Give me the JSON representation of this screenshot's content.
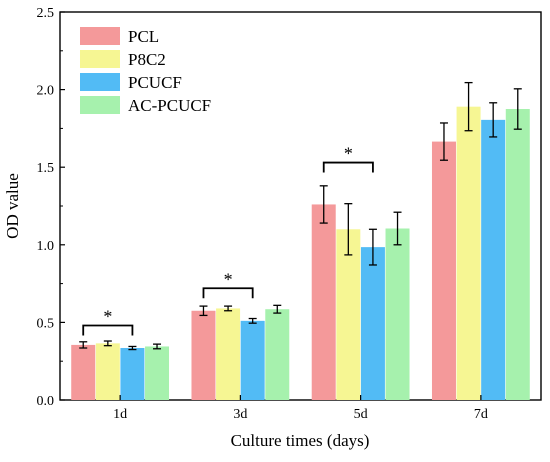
{
  "chart_data": {
    "type": "bar",
    "title": "",
    "xlabel": "Culture times (days)",
    "ylabel": "OD value",
    "ylim": [
      0,
      2.5
    ],
    "yticks": [
      "0.0",
      "0.5",
      "1.0",
      "1.5",
      "2.0",
      "2.5"
    ],
    "categories": [
      "1d",
      "3d",
      "5d",
      "7d"
    ],
    "series": [
      {
        "name": "PCL",
        "color": "#f4999a",
        "values": [
          0.355,
          0.575,
          1.26,
          1.665
        ],
        "errors": [
          0.02,
          0.03,
          0.12,
          0.12
        ]
      },
      {
        "name": "P8C2",
        "color": "#f6f693",
        "values": [
          0.365,
          0.59,
          1.1,
          1.89
        ],
        "errors": [
          0.015,
          0.015,
          0.165,
          0.155
        ]
      },
      {
        "name": "PCUCF",
        "color": "#52bbf5",
        "values": [
          0.335,
          0.51,
          0.985,
          1.805
        ],
        "errors": [
          0.01,
          0.015,
          0.115,
          0.11
        ]
      },
      {
        "name": "AC-PCUCF",
        "color": "#a6f1ad",
        "values": [
          0.345,
          0.585,
          1.105,
          1.875
        ],
        "errors": [
          0.015,
          0.025,
          0.105,
          0.13
        ]
      }
    ],
    "significance": [
      {
        "category": "1d",
        "from_series": 0,
        "to_series": 2,
        "label": "*",
        "level": 0.48
      },
      {
        "category": "3d",
        "from_series": 0,
        "to_series": 2,
        "label": "*",
        "level": 0.72
      },
      {
        "category": "5d",
        "from_series": 0,
        "to_series": 2,
        "label": "*",
        "level": 1.53
      }
    ],
    "legend": "top-left"
  }
}
